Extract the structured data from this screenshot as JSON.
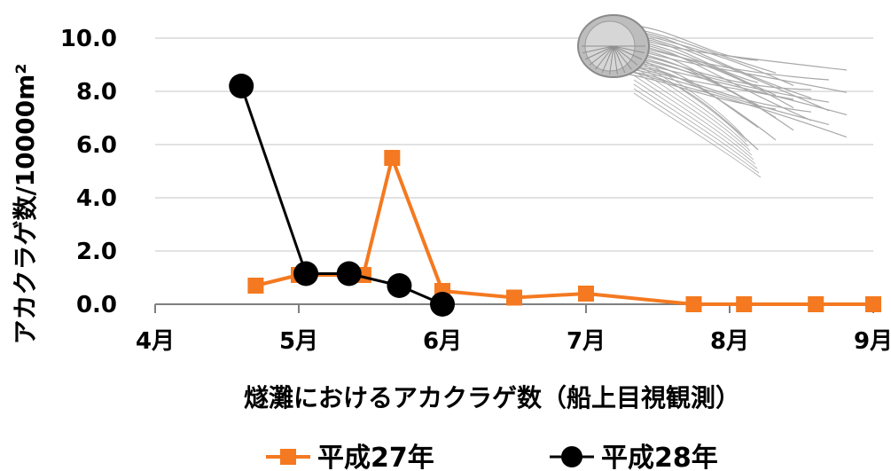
{
  "chart_data": {
    "type": "line",
    "title": "",
    "xlabel": "燧灘におけるアカクラゲ数（船上目視観測）",
    "ylabel": "アカクラゲ数/10000m²",
    "ylim": [
      0,
      10
    ],
    "yticks": [
      "0.0",
      "2.0",
      "4.0",
      "6.0",
      "8.0",
      "10.0"
    ],
    "xlim": [
      4,
      9
    ],
    "xticks": [
      "4月",
      "5月",
      "6月",
      "7月",
      "8月",
      "9月"
    ],
    "grid": true,
    "legend_position": "bottom",
    "series": [
      {
        "name": "平成27年",
        "color": "#f47920",
        "marker": "square",
        "x": [
          4.7,
          5.0,
          5.45,
          5.65,
          6.0,
          6.5,
          7.0,
          7.75,
          8.1,
          8.6,
          9.0
        ],
        "values": [
          0.7,
          1.1,
          1.1,
          5.5,
          0.5,
          0.25,
          0.4,
          0.0,
          0.0,
          0.0,
          0.0
        ]
      },
      {
        "name": "平成28年",
        "color": "#000000",
        "marker": "circle",
        "x": [
          4.6,
          5.05,
          5.35,
          5.7,
          6.0
        ],
        "values": [
          8.2,
          1.15,
          1.15,
          0.7,
          0.0
        ]
      }
    ],
    "decoration": "jellyfish-illustration"
  }
}
